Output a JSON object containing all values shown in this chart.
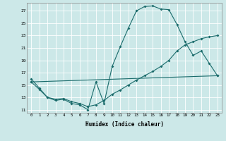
{
  "xlabel": "Humidex (Indice chaleur)",
  "xlim": [
    -0.5,
    23.5
  ],
  "ylim": [
    10.5,
    28.3
  ],
  "xticks": [
    0,
    1,
    2,
    3,
    4,
    5,
    6,
    7,
    8,
    9,
    10,
    11,
    12,
    13,
    14,
    15,
    16,
    17,
    18,
    19,
    20,
    21,
    22,
    23
  ],
  "yticks": [
    11,
    13,
    15,
    17,
    19,
    21,
    23,
    25,
    27
  ],
  "bg_color": "#cce8e8",
  "grid_color": "#ffffff",
  "line_color": "#1a6b6b",
  "line1_x": [
    0,
    1,
    2,
    3,
    4,
    5,
    6,
    7,
    8,
    9,
    10,
    11,
    12,
    13,
    14,
    15,
    16,
    17,
    18,
    19,
    20,
    21,
    22,
    23
  ],
  "line1_y": [
    16.0,
    14.5,
    13.0,
    12.5,
    12.7,
    12.0,
    11.8,
    11.0,
    15.5,
    12.0,
    18.0,
    21.2,
    24.2,
    27.0,
    27.7,
    27.8,
    27.3,
    27.2,
    24.8,
    22.0,
    19.8,
    20.5,
    18.5,
    16.5
  ],
  "line2_x": [
    0,
    1,
    2,
    3,
    4,
    5,
    6,
    7,
    8,
    9,
    10,
    11,
    12,
    13,
    14,
    15,
    16,
    17,
    18,
    19,
    20,
    21,
    22,
    23
  ],
  "line2_y": [
    15.5,
    14.3,
    13.0,
    12.7,
    12.8,
    12.3,
    12.0,
    11.5,
    11.8,
    12.5,
    13.5,
    14.2,
    15.0,
    15.8,
    16.5,
    17.2,
    18.0,
    19.0,
    20.5,
    21.5,
    22.0,
    22.5,
    22.8,
    23.0
  ],
  "line3_x": [
    0,
    23
  ],
  "line3_y": [
    15.5,
    16.5
  ]
}
